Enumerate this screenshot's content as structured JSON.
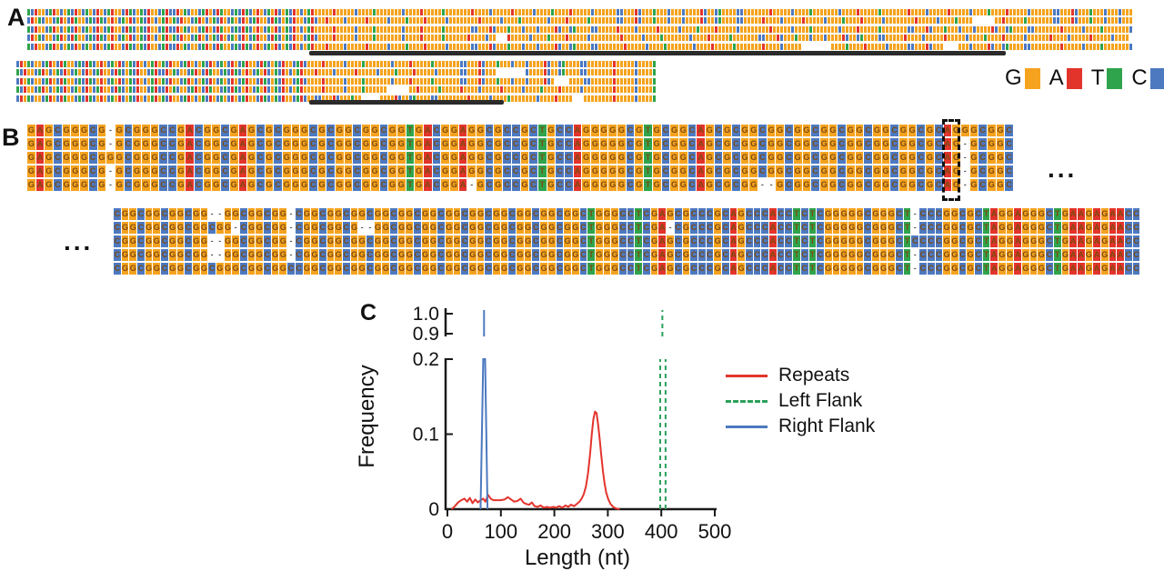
{
  "base_colors": {
    "G": "#F5A31F",
    "A": "#E3342B",
    "T": "#2FA44C",
    "C": "#4D79C0"
  },
  "panel_a": {
    "label": "A",
    "legend": [
      {
        "base": "G",
        "color": "#F5A31F"
      },
      {
        "base": "A",
        "color": "#E3342B"
      },
      {
        "base": "T",
        "color": "#2FA44C"
      },
      {
        "base": "C",
        "color": "#4D79C0"
      }
    ],
    "block1_rows": [
      "TCAGGCTAGCGTCAGCTGCAGCTAGGCATCGTCAGGCTACCAGTCGGCTAGCATGGCTCATCGAGCTGACGTCAGCGTAGGGGGAGGGGGCGGGGTGGGGGGGCGGGGAGGGGGTGGGGGGGAGGGGCGGGGGAGGGGGCGGGGTGGGGAGGGGGCGGGGGGCCGGGACGGGTGGGCGGGCGGGGACGGCTGGGGCCGGGGGGGAGGGGGCGGGGTGGGGGGGCGGGGAGGGGGTGGGGGGGAGGGGCGGGGGAGGGGGCGGGGTGGGGAGGGGGCGGGGGGCCGGGACGGGTGGGCGGGCGGG",
      "CAGTCGGCTAGCATGGCTCATCGAGCTGACGTCAGCGTAGTCAGGCTAGCGTCAGCTGCAGCTAGGCATCGTCAGGCTACGGAGGGGCGGGGGAGGGGGCGGGGTGGGGAGGGGGCGGGGGGGGAGGGGGCGGGGTGGGGGGGCGGGGAGGGGGTGGGGGGGCCGGGACGGGTGGGCGGGCGGGGACGGCTGGGGCCGGGGGAGGGGCGGGGGAGGGGGCGGGGTGGGGAGGGGGCGGGGGGGGAGGGGGCGGGGTGGGG      GGAGGGGGTGGGGGGGCCGGGACGGGTGGGCGGGCGGG",
      "TCAGGCTAGCGTCAGCTGCAGCTAGGCATCGTCAGGCTACCAGTCGGCTAGCATGGCTCATCGAGCTGACGTCAGCGTAGGGGGAGGGGGCGGGGTGGGGGGGCGGGGAGGGGGTGGGGGGGCCGGGACGGGTGGGCGGGCGGGGACGGCTGGGGCCGGGGGAGGGGCGGGGGAGGGGGCGGGGTGGGGAGGGGGCGGGGGGGGAGGGGGCGGGGTGGGGGGGCGGGGAGGGGGTGGGGGGGCCGGGACGGGTGGGCGGGCGGGGACGGCTGGGGCCGGGGGGGAGGGGGCGGGGTGGGGGGGC",
      "CAGTCGGCTAGCATGGCTCATCGAGCTGACGTCAGCGTAGTCAGGCTAGCGTCAGCTGCAGCTAGGCATCGTCAGGCTACGGGGAGGGGGCGGGGTGGGGGGGCGGGGAGGGGGTGGGGGGAGGGGCGG   AGGGGGCGGGGTGGGGAGGGGGCGGGGGGGGAGGGGGCGGGGTGGGGGGGCGGGGAGGGGGTGGGGGGGCCGGGACGGGTGGGCGGGCGGGGACGGCTGGGGCCGGGGGAGGGGCGGGGGAGGGGGCGGGGTGGGGAGGGGGCGGGGGGAGGGGCGGGGGAGGGGGCGGGG",
      "TCAGGCTAGCGTCAGCTGCAGCTAGGCATCGTCAGGCTACCAGTCGGCTAGCATGGCTCATCGAGCTGACGTCAGCGTAGGGAGGGGCGGGGGAGGGGGCGGGGTGGGGAGGGGGCGGGGGGCCGGGACGGGTGGGCGGGCGGGGACGGCTGGGGCCGGGGGGGAGGGGGCGGGGTGGGGGGGCGGGGAGGGGGTGGGGGGGAGGGGCGGGGG        GGGGTGGGGAGGGGGCGGGGGCCGGGACGGG    GGGCGGGGACGGCTGGGGCCGGGGGGGGAGGGGGCGGGGTGGGGGGGC"
    ],
    "block2_rows": [
      "CAGTCGGCTAGCATGGCTCATCGAGCTGACGTCAGCGTAGTCAGGCTAGCGTCAGCTGCAGCTAGGCATCGTCAGGCTACGGGGAGGGGGCGGGGTGGGGGGGCGGGGAGGGGGTGGGGGGGCCGGGACGGGTGGGCGGGCGGGGACGGCTGGGGCCGGGGGGGAGGGGGCGGGGT",
      "TCAGGCTAGCGTCAGCTGCAGCTAGGCATCGTCAGGCTACCAGTCGGCTAGCATGGCTCATCGAGCTGACGTCAGCGTAGGGAGGGGCGGGGGAGGGGGCGGGGTGGGGAGGGGGCGGGGGGCCGGGACGGG        CGGGGACGGCTGGGGCCGGGGGGGAGGGGGCGGGGT",
      "CAGTCGGCTAGCATGGCTCATCGAGCTGACGTCAGCGTAGTCAGGCTAGCGTCAGCTGCAGCTAGGCATCGTCAGGCTACGGGGAGGGGGCGGGGTGGGGGGGCGGGGAGGGGGTGGGGGGGCCGGGACGGGTGGGCGGGCGGGGACG    GGGGCCGGGGGGAGGGGGCGGGGT",
      "TCAGGCTAGCGTCAGCTGCAGCTAGGCATCGTCAGGCTACCAGTCGGCTAGCATGGCTCATCGAGCTGACGTCAGCGTAGGGGGAGGGGGCGGGGTGGGGGG      GGAGGGGGTGGGGGAGGGGCGGGGGAGGGGGCGGGGTGGGGAGGGGGCGGGGGGGGAGGGGGCGGGGT",
      "CAGTCGGCTAGCATGGCTCATCGAGCTGACGTCAGCGTAGTCAGGCTAGCGTCAGCTGCAGCTAGGCATCGTCAGGCTACGGCCGGGACGGGTGG     GGGGACGGCTGGGGCCGGGGGGGGAGGGGGCGGGGTGGGGGGGCGGGGAGGGG   GGGGGGGGAGGGGGCGGGGT"
    ],
    "repeat_bars": [
      {
        "block": 1
      },
      {
        "block": 2
      }
    ]
  },
  "panel_b": {
    "label": "B",
    "letter_color": "#7c4a10",
    "gap_color": "#555555",
    "ellipsis_after_block1": "...",
    "ellipsis_before_block2": "...",
    "highlight": {
      "block": 1,
      "column_index": 104
    },
    "block1_rows": [
      "GAGCGGGCG-GCGGGCCGACGGCGAGCGCGGGCGCGGCGGCGGTGACGGAGGCGCCGCTGCCAGGGGGCGTGCGGCAGCGCGGCGGCGGCGGCGGCGGCGGCGCAGGGCGGC",
      "GAGCGGGCG-GCGGGCCGACGGCGAGCGCGGGCGCGGCGGCGGTGACGGAGGCGCCGCTGCCAGGGGGCGTGCGGCAGCGCGGCGGCGGCGGCGGCGGCGGCGCAG-GCGGC",
      "GAGCGGGCGGGCGGGCCGACGGCGAGCGCGGGCGCGGCGGCGGTGACGGAGGCGCCGCTGCCAGGGGGCGTGCGGCAGCGCGGCGGCGGCGGCGGCGGCGGCGCAG-GCGGC",
      "GAGCGGGCG-GCGGGCCGACGGCGAGCGCGGGCGCGGCGGCGGTGACGGAGGCGCCGCTGCCAGGGGGCGTGCGGCAGCGCGGCGGCGGCGGCGGCGGCGGCGCAG-GCGGC",
      "GAGCGGGCG-GCGGGCCGACGGCGAGCGCGGGCGCGGCGGCGGTGACGGA-GCGCCGCTGCCAGGGGGCGTGCGGCAGCGCGG--GCGGCGGCGGCGGCGGCGCAG-GCGGC"
    ],
    "block2_rows": [
      "CGGCGGCGGCGG--GGCGGCGG-CGGCGGCGGCGGCGGCGGCGGCGGCGGCGGCGGCGGCTGGGCCTCGAGCGCCCGCAGCCCACCTCTCGGGGGCGGGCT-CCCGGCGCTAGGAGGGCTGAAGAGAACC",
      "CGGCGGCGGCGGCGG-CGGCGG-CGGCGGCG--GGCGGCGGCGGCGGCGGCGGCGGCGGCTGGGCCTCGA-CGCCCGCAGCCCACCTCTCGGGGGCGGGCT-CCCGGCGCTAGGAGGGCTGAAGAGAACC",
      "CGGCGGCGGCGG--GGCGGCGG-CGGCGGCGGCGGCGGCGGCGGCGGCGGCGGCGGCGGCTGGGCCTCGAGCGCCCGCAGCCCACCTCTCGGGGGCGGGCTCCCCGGCGCTAGGAGGGCTGAAGAGAACC",
      "CGGCGGCGGCGG--GGCGGCGG-CGGCGGCGGCGGCGGCGGCGGCGGCGGCGGCGGCGGCTGGGCCTCGAGCGCCCGCAGCCCACCTCTCGGGGGCGGGCT-CCCGGCGCTAGGAGGGCTGAAGAGAACC",
      "CGGCGGCGGCGGCGGGCGGCGGCCGGCGGCGGCGGCGGCGGCGGCGGCGGCGGCGGCGGCTGGGCCTCGAGCGCCCGCAGCCCACCTCTCGGGGGCGGGCT-CCCGGCGCTAGGAGGGCTGAAGAGAACC"
    ]
  },
  "panel_c": {
    "label": "C",
    "chart_data": {
      "type": "line",
      "xlabel": "Length (nt)",
      "ylabel": "Frequency",
      "x_ticks": [
        0,
        100,
        200,
        300,
        400,
        500
      ],
      "x_range": [
        0,
        500
      ],
      "y_axis_break": true,
      "y_ticks_lower": [
        "0",
        "0.1",
        "0.2"
      ],
      "y_ticks_upper": [
        "0.9",
        "1.0"
      ],
      "y_lower_range": [
        0,
        0.2
      ],
      "y_upper_range": [
        0.9,
        1.0
      ],
      "grid": false,
      "legend_position": "right",
      "series": [
        {
          "name": "Repeats",
          "color": "#e3342c",
          "style": "solid",
          "points": [
            [
              8,
              0
            ],
            [
              14,
              0.004
            ],
            [
              20,
              0.009
            ],
            [
              26,
              0.012
            ],
            [
              32,
              0.014
            ],
            [
              37,
              0.01
            ],
            [
              42,
              0.015
            ],
            [
              47,
              0.008
            ],
            [
              52,
              0.013
            ],
            [
              57,
              0.009
            ],
            [
              62,
              0.012
            ],
            [
              67,
              0.014
            ],
            [
              71,
              0.01
            ],
            [
              76,
              0.019
            ],
            [
              81,
              0.014
            ],
            [
              86,
              0.012
            ],
            [
              93,
              0.012
            ],
            [
              100,
              0.012
            ],
            [
              107,
              0.013
            ],
            [
              113,
              0.016
            ],
            [
              119,
              0.013
            ],
            [
              125,
              0.01
            ],
            [
              131,
              0.011
            ],
            [
              137,
              0.014
            ],
            [
              142,
              0.009
            ],
            [
              147,
              0.007
            ],
            [
              153,
              0.006
            ],
            [
              158,
              0.009
            ],
            [
              163,
              0.004
            ],
            [
              169,
              0.003
            ],
            [
              174,
              0.005
            ],
            [
              180,
              0.002
            ],
            [
              186,
              0.003
            ],
            [
              192,
              0.002
            ],
            [
              198,
              0.003
            ],
            [
              203,
              0.002
            ],
            [
              209,
              0.004
            ],
            [
              215,
              0.002
            ],
            [
              221,
              0.005
            ],
            [
              226,
              0.003
            ],
            [
              231,
              0.006
            ],
            [
              237,
              0.004
            ],
            [
              242,
              0.007
            ],
            [
              247,
              0.01
            ],
            [
              251,
              0.014
            ],
            [
              255,
              0.02
            ],
            [
              259,
              0.03
            ],
            [
              263,
              0.048
            ],
            [
              267,
              0.075
            ],
            [
              270,
              0.1
            ],
            [
              273,
              0.12
            ],
            [
              276,
              0.13
            ],
            [
              279,
              0.128
            ],
            [
              282,
              0.112
            ],
            [
              285,
              0.092
            ],
            [
              288,
              0.07
            ],
            [
              291,
              0.05
            ],
            [
              294,
              0.034
            ],
            [
              297,
              0.022
            ],
            [
              301,
              0.013
            ],
            [
              305,
              0.007
            ],
            [
              310,
              0.003
            ],
            [
              315,
              0.001
            ],
            [
              322,
              0
            ]
          ]
        },
        {
          "name": "Left Flank",
          "color": "#2ca05a",
          "style": "dashed",
          "spikes_x": [
            398,
            408
          ],
          "spike_peak": 1.0,
          "upper_spike_x": 402
        },
        {
          "name": "Right Flank",
          "color": "#4d79c0",
          "style": "solid",
          "spikes_x": [
            68.5
          ],
          "spike_peak": 1.0,
          "upper_spike_x": 68.5,
          "lower_spike_polyline": [
            [
              62,
              0
            ],
            [
              67,
              0.2
            ],
            [
              70.5,
              0.2
            ],
            [
              75,
              0
            ]
          ]
        }
      ],
      "legend": [
        "Repeats",
        "Left Flank",
        "Right Flank"
      ]
    }
  }
}
